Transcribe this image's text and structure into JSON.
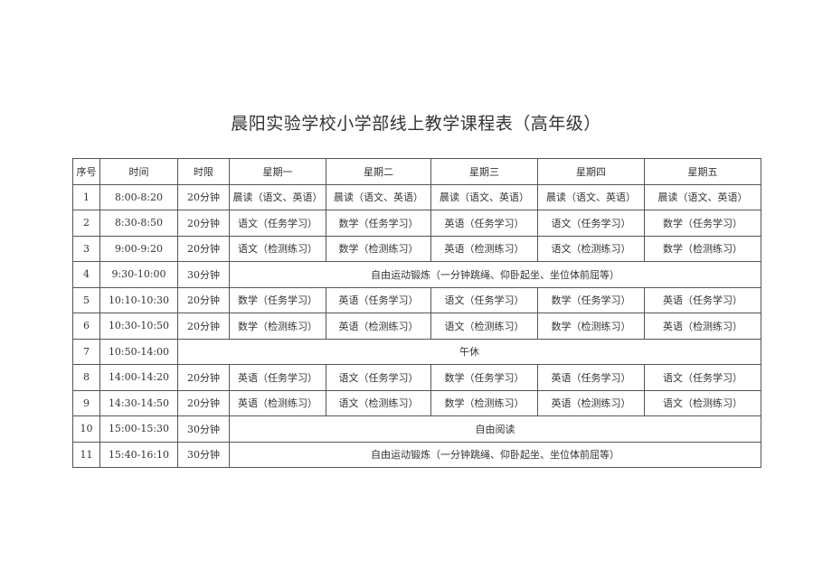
{
  "title": "晨阳实验学校小学部线上教学课程表（高年级）",
  "headers": [
    "序号",
    "时间",
    "时限",
    "星期一",
    "星期二",
    "星期三",
    "星期四",
    "星期五"
  ],
  "rows": [
    {
      "no": "1",
      "time": "8:00-8:20",
      "limit": "20分钟",
      "cells": [
        "晨读（语文、英语）",
        "晨读（语文、英语）",
        "晨读（语文、英语）",
        "晨读（语文、英语）",
        "晨读（语文、英语）"
      ]
    },
    {
      "no": "2",
      "time": "8:30-8:50",
      "limit": "20分钟",
      "cells": [
        "语文（任务学习）",
        "数学（任务学习）",
        "英语（任务学习）",
        "语文（任务学习）",
        "数学（任务学习）"
      ]
    },
    {
      "no": "3",
      "time": "9:00-9:20",
      "limit": "20分钟",
      "cells": [
        "语文（检测练习）",
        "数学（检测练习）",
        "英语（检测练习）",
        "语文（检测练习）",
        "数学（检测练习）"
      ]
    },
    {
      "no": "4",
      "time": "9:30-10:00",
      "limit": "30分钟",
      "span": "自由运动锻炼（一分钟跳绳、仰卧起坐、坐位体前屈等）"
    },
    {
      "no": "5",
      "time": "10:10-10:30",
      "limit": "20分钟",
      "cells": [
        "数学（任务学习）",
        "英语（任务学习）",
        "语文（任务学习）",
        "数学（任务学习）",
        "英语（任务学习）"
      ]
    },
    {
      "no": "6",
      "time": "10:30-10:50",
      "limit": "20分钟",
      "cells": [
        "数学（检测练习）",
        "英语（检测练习）",
        "语文（检测练习）",
        "数学（检测练习）",
        "英语（检测练习）"
      ]
    },
    {
      "no": "7",
      "time": "10:50-14:00",
      "wide": "午休"
    },
    {
      "no": "8",
      "time": "14:00-14:20",
      "limit": "20分钟",
      "cells": [
        "英语（任务学习）",
        "语文（任务学习）",
        "数学（任务学习）",
        "英语（任务学习）",
        "语文（任务学习）"
      ]
    },
    {
      "no": "9",
      "time": "14:30-14:50",
      "limit": "20分钟",
      "cells": [
        "英语（检测练习）",
        "语文（检测练习）",
        "数学（检测练习）",
        "英语（检测练习）",
        "语文（检测练习）"
      ]
    },
    {
      "no": "10",
      "time": "15:00-15:30",
      "limit": "30分钟",
      "span": "自由阅读"
    },
    {
      "no": "11",
      "time": "15:40-16:10",
      "limit": "30分钟",
      "span": "自由运动锻炼（一分钟跳绳、仰卧起坐、坐位体前屈等）"
    }
  ]
}
